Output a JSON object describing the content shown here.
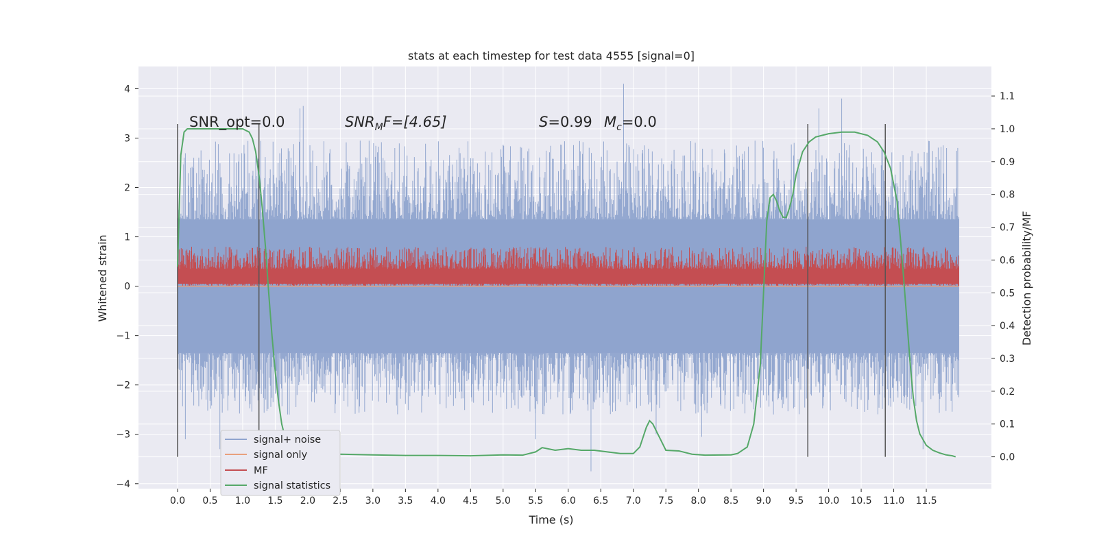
{
  "chart_data": {
    "type": "line",
    "title": "stats at each timestep for test data 4555 [signal=0]",
    "xlabel": "Time (s)",
    "ylabel": "Whitened strain",
    "y2label": "Detection probability/MF",
    "xlim": [
      -0.6,
      12.5
    ],
    "ylim": [
      -4.1,
      4.45
    ],
    "y2lim": [
      -0.097,
      1.19
    ],
    "grid": true,
    "legend_position": "lower-left",
    "xticks": [
      "0.0",
      "0.5",
      "1.0",
      "1.5",
      "2.0",
      "2.5",
      "3.0",
      "3.5",
      "4.0",
      "4.5",
      "5.0",
      "5.5",
      "6.0",
      "6.5",
      "7.0",
      "7.5",
      "8.0",
      "8.5",
      "9.0",
      "9.5",
      "10.0",
      "10.5",
      "11.0",
      "11.5"
    ],
    "yticks": [
      "4",
      "3",
      "2",
      "1",
      "0",
      "−1",
      "−2",
      "−3",
      "−4"
    ],
    "y2ticks": [
      "1.1",
      "1.0",
      "0.9",
      "0.8",
      "0.7",
      "0.6",
      "0.5",
      "0.4",
      "0.3",
      "0.2",
      "0.1",
      "0.0"
    ],
    "annotations": {
      "snr_opt": "SNR_opt=0.0",
      "snr_mf_prefix": "SNR",
      "snr_mf_sub": "M",
      "snr_mf_suffix": "F=[4.65]",
      "stat_s": "S",
      "stat_s_value": "=0.99",
      "mc_prefix": "M",
      "mc_sub": "c",
      "mc_value": "=0.0"
    },
    "legend": [
      "signal+ noise",
      "signal only",
      "MF",
      "signal statistics"
    ],
    "colors": {
      "signal_noise": "#8fa4ce",
      "signal_only": "#e8a07d",
      "mf": "#c44e52",
      "signal_statistics": "#55a868",
      "vlines": "#555555",
      "background": "#eaeaf2",
      "grid": "#ffffff"
    },
    "series": [
      {
        "name": "signal+ noise",
        "description_values": "noise samples from t=0.0 to 12.0 s",
        "x_range": [
          0.0,
          12.0
        ],
        "envelope_low": [
          -3.1,
          -2.6,
          -2.4,
          -2.3,
          -2.2
        ],
        "spikes": [
          [
            0.0,
            2.9
          ],
          [
            0.1,
            2.6
          ],
          [
            1.93,
            3.65
          ],
          [
            1.88,
            3.6
          ],
          [
            0.12,
            -3.1
          ],
          [
            6.85,
            4.1
          ],
          [
            6.35,
            -3.75
          ],
          [
            10.2,
            3.8
          ],
          [
            9.85,
            3.6
          ],
          [
            11.45,
            -3.3
          ],
          [
            7.35,
            -3.0
          ],
          [
            5.5,
            -3.1
          ],
          [
            8.05,
            -3.05
          ],
          [
            0.65,
            -3.3
          ]
        ]
      },
      {
        "name": "signal only",
        "x": [
          0.0,
          12.0
        ],
        "values": [
          0.0,
          0.0
        ]
      },
      {
        "name": "MF",
        "x_range": [
          0.0,
          12.0
        ],
        "range_low": 0.0,
        "range_high": 0.8
      },
      {
        "name": "signal statistics",
        "axis": "right",
        "x": [
          0.0,
          0.05,
          0.1,
          0.15,
          0.2,
          0.3,
          0.5,
          0.8,
          1.0,
          1.1,
          1.15,
          1.2,
          1.25,
          1.3,
          1.35,
          1.4,
          1.45,
          1.5,
          1.55,
          1.6,
          1.65,
          1.7,
          1.8,
          1.9,
          2.0,
          2.2,
          2.5,
          3.0,
          3.5,
          4.0,
          4.5,
          5.0,
          5.3,
          5.5,
          5.6,
          5.8,
          6.0,
          6.2,
          6.4,
          6.6,
          6.8,
          7.0,
          7.1,
          7.2,
          7.25,
          7.3,
          7.4,
          7.5,
          7.7,
          7.9,
          8.1,
          8.5,
          8.6,
          8.75,
          8.85,
          8.95,
          9.0,
          9.05,
          9.1,
          9.15,
          9.2,
          9.25,
          9.3,
          9.35,
          9.4,
          9.45,
          9.5,
          9.6,
          9.7,
          9.8,
          9.9,
          10.0,
          10.2,
          10.4,
          10.6,
          10.75,
          10.85,
          10.95,
          11.05,
          11.1,
          11.15,
          11.2,
          11.25,
          11.3,
          11.35,
          11.4,
          11.5,
          11.6,
          11.7,
          11.8,
          11.9,
          11.95
        ],
        "values": [
          0.58,
          0.92,
          0.99,
          1.0,
          1.0,
          1.0,
          1.0,
          1.0,
          1.0,
          0.99,
          0.97,
          0.93,
          0.86,
          0.76,
          0.64,
          0.5,
          0.37,
          0.26,
          0.17,
          0.1,
          0.06,
          0.035,
          0.015,
          0.008,
          0.005,
          0.005,
          0.008,
          0.006,
          0.004,
          0.004,
          0.003,
          0.006,
          0.005,
          0.015,
          0.028,
          0.02,
          0.025,
          0.02,
          0.02,
          0.015,
          0.01,
          0.01,
          0.03,
          0.09,
          0.11,
          0.1,
          0.06,
          0.02,
          0.018,
          0.008,
          0.005,
          0.006,
          0.01,
          0.03,
          0.1,
          0.28,
          0.5,
          0.72,
          0.79,
          0.8,
          0.78,
          0.75,
          0.73,
          0.73,
          0.76,
          0.8,
          0.86,
          0.93,
          0.96,
          0.975,
          0.98,
          0.985,
          0.99,
          0.99,
          0.98,
          0.96,
          0.93,
          0.88,
          0.78,
          0.67,
          0.55,
          0.42,
          0.29,
          0.18,
          0.11,
          0.07,
          0.035,
          0.02,
          0.012,
          0.006,
          0.003,
          0.0
        ]
      }
    ],
    "vlines": [
      0.0,
      1.25,
      9.68,
      10.87
    ]
  }
}
